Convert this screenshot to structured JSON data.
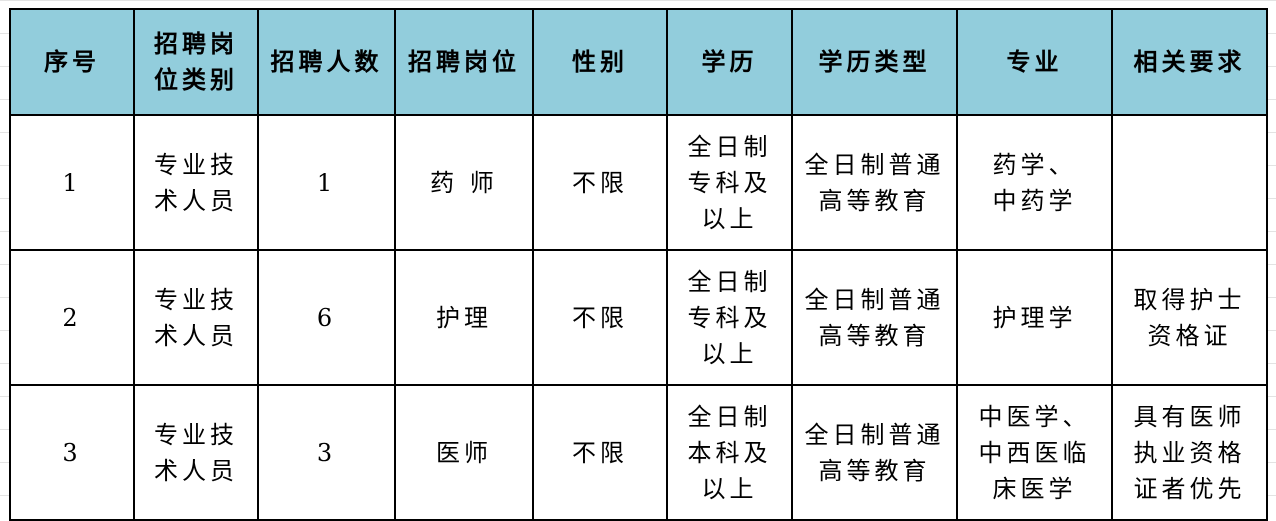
{
  "header_color": "#92cddc",
  "headers": [
    "序号",
    "招聘岗\n位类别",
    "招聘人数",
    "招聘岗位",
    "性别",
    "学历",
    "学历类型",
    "专业",
    "相关要求"
  ],
  "rows": [
    [
      "1",
      "专业技\n术人员",
      "1",
      "药 师",
      "不限",
      "全日制\n专科及\n以上",
      "全日制普通\n高等教育",
      "药学、\n中药学",
      ""
    ],
    [
      "2",
      "专业技\n术人员",
      "6",
      "护理",
      "不限",
      "全日制\n专科及\n以上",
      "全日制普通\n高等教育",
      "护理学",
      "取得护士\n资格证"
    ],
    [
      "3",
      "专业技\n术人员",
      "3",
      "医师",
      "不限",
      "全日制\n本科及\n以上",
      "全日制普通\n高等教育",
      "中医学、\n中西医临\n床医学",
      "具有医师\n执业资格\n证者优先"
    ]
  ]
}
